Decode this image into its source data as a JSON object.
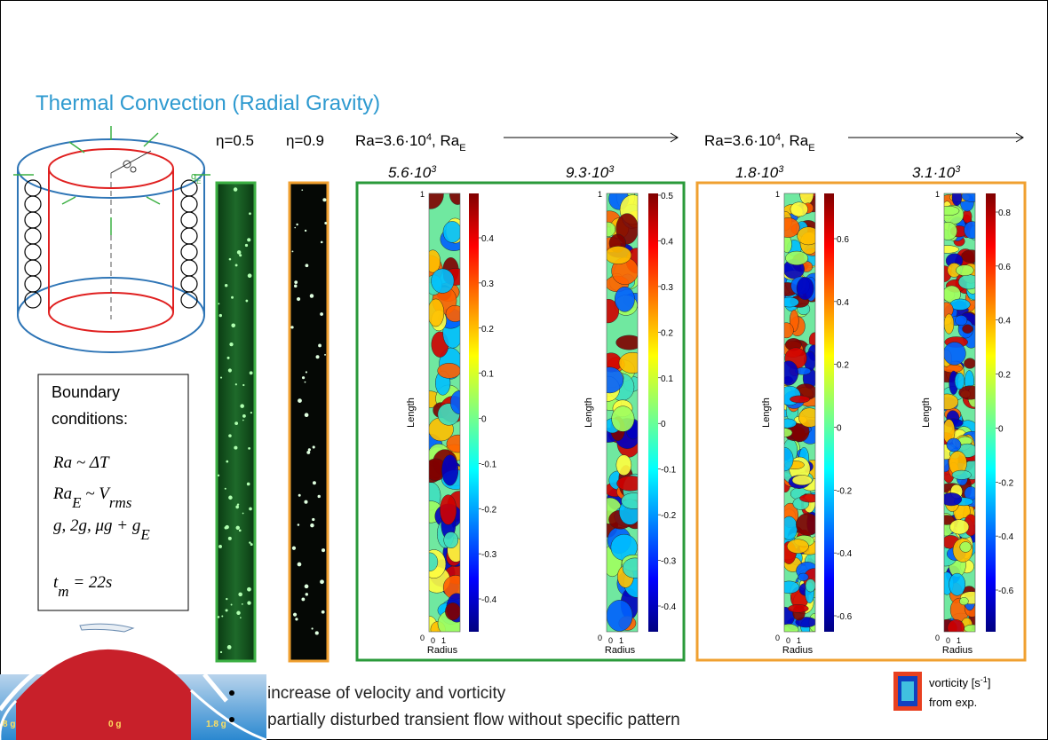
{
  "title": "Thermal Convection (Radial Gravity)",
  "gravity_label": {
    "base": "g",
    "sub": "E"
  },
  "cases": [
    "η=0.5",
    "η=0.9"
  ],
  "ra_groups": [
    {
      "base": "Ra=3.6·10",
      "exp": "4",
      "mid": ", Ra",
      "sub": "E"
    },
    {
      "base": "Ra=3.6·10",
      "exp": "4",
      "mid": ", Ra",
      "sub": "E"
    }
  ],
  "plots": [
    {
      "title_base": "5.6·10",
      "title_exp": "3",
      "y_label": "Length",
      "x_label": "Radius",
      "y_ticks": [
        "1",
        "0"
      ],
      "x_ticks": [
        "0",
        "1"
      ],
      "colorbar_ticks": [
        "0.4",
        "0.3",
        "0.2",
        "0.1",
        "0",
        "-0.1",
        "-0.2",
        "-0.3",
        "-0.4"
      ]
    },
    {
      "title_base": "9.3·10",
      "title_exp": "3",
      "y_label": "Length",
      "x_label": "Radius",
      "y_ticks": [
        "1",
        "0"
      ],
      "x_ticks": [
        "0",
        "1"
      ],
      "colorbar_ticks": [
        "0.5",
        "0.4",
        "0.3",
        "0.2",
        "0.1",
        "0",
        "-0.1",
        "-0.2",
        "-0.3",
        "-0.4"
      ]
    },
    {
      "title_base": "1.8·10",
      "title_exp": "3",
      "y_label": "Length",
      "x_label": "Radius",
      "y_ticks": [
        "1",
        "0"
      ],
      "x_ticks": [
        "0",
        "1"
      ],
      "colorbar_ticks": [
        "0.6",
        "0.4",
        "0.2",
        "0",
        "-0.2",
        "-0.4",
        "-0.6"
      ]
    },
    {
      "title_base": "3.1·10",
      "title_exp": "3",
      "y_label": "Length",
      "x_label": "Radius",
      "y_ticks": [
        "1",
        "0"
      ],
      "x_ticks": [
        "0",
        "1"
      ],
      "colorbar_ticks": [
        "0.8",
        "0.6",
        "0.4",
        "0.2",
        "0",
        "-0.2",
        "-0.4",
        "-0.6"
      ]
    }
  ],
  "boundary": {
    "heading": [
      "Boundary",
      "conditions:"
    ],
    "formulas": [
      [
        "Ra ~ ΔT"
      ],
      [
        "Ra",
        "E",
        " ~ V",
        "rms"
      ],
      [
        "g, 2g, μg + g",
        "E"
      ],
      [
        "t",
        "m",
        " = 22s"
      ]
    ]
  },
  "bullets": [
    "increase of velocity and vorticity",
    "partially disturbed transient flow without specific pattern"
  ],
  "legend": {
    "base": "vorticity [s",
    "exp": "-1",
    "end": "]",
    "line2": "from exp."
  },
  "flight_phases": [
    "8 g",
    "0 g",
    "1.8 g"
  ]
}
